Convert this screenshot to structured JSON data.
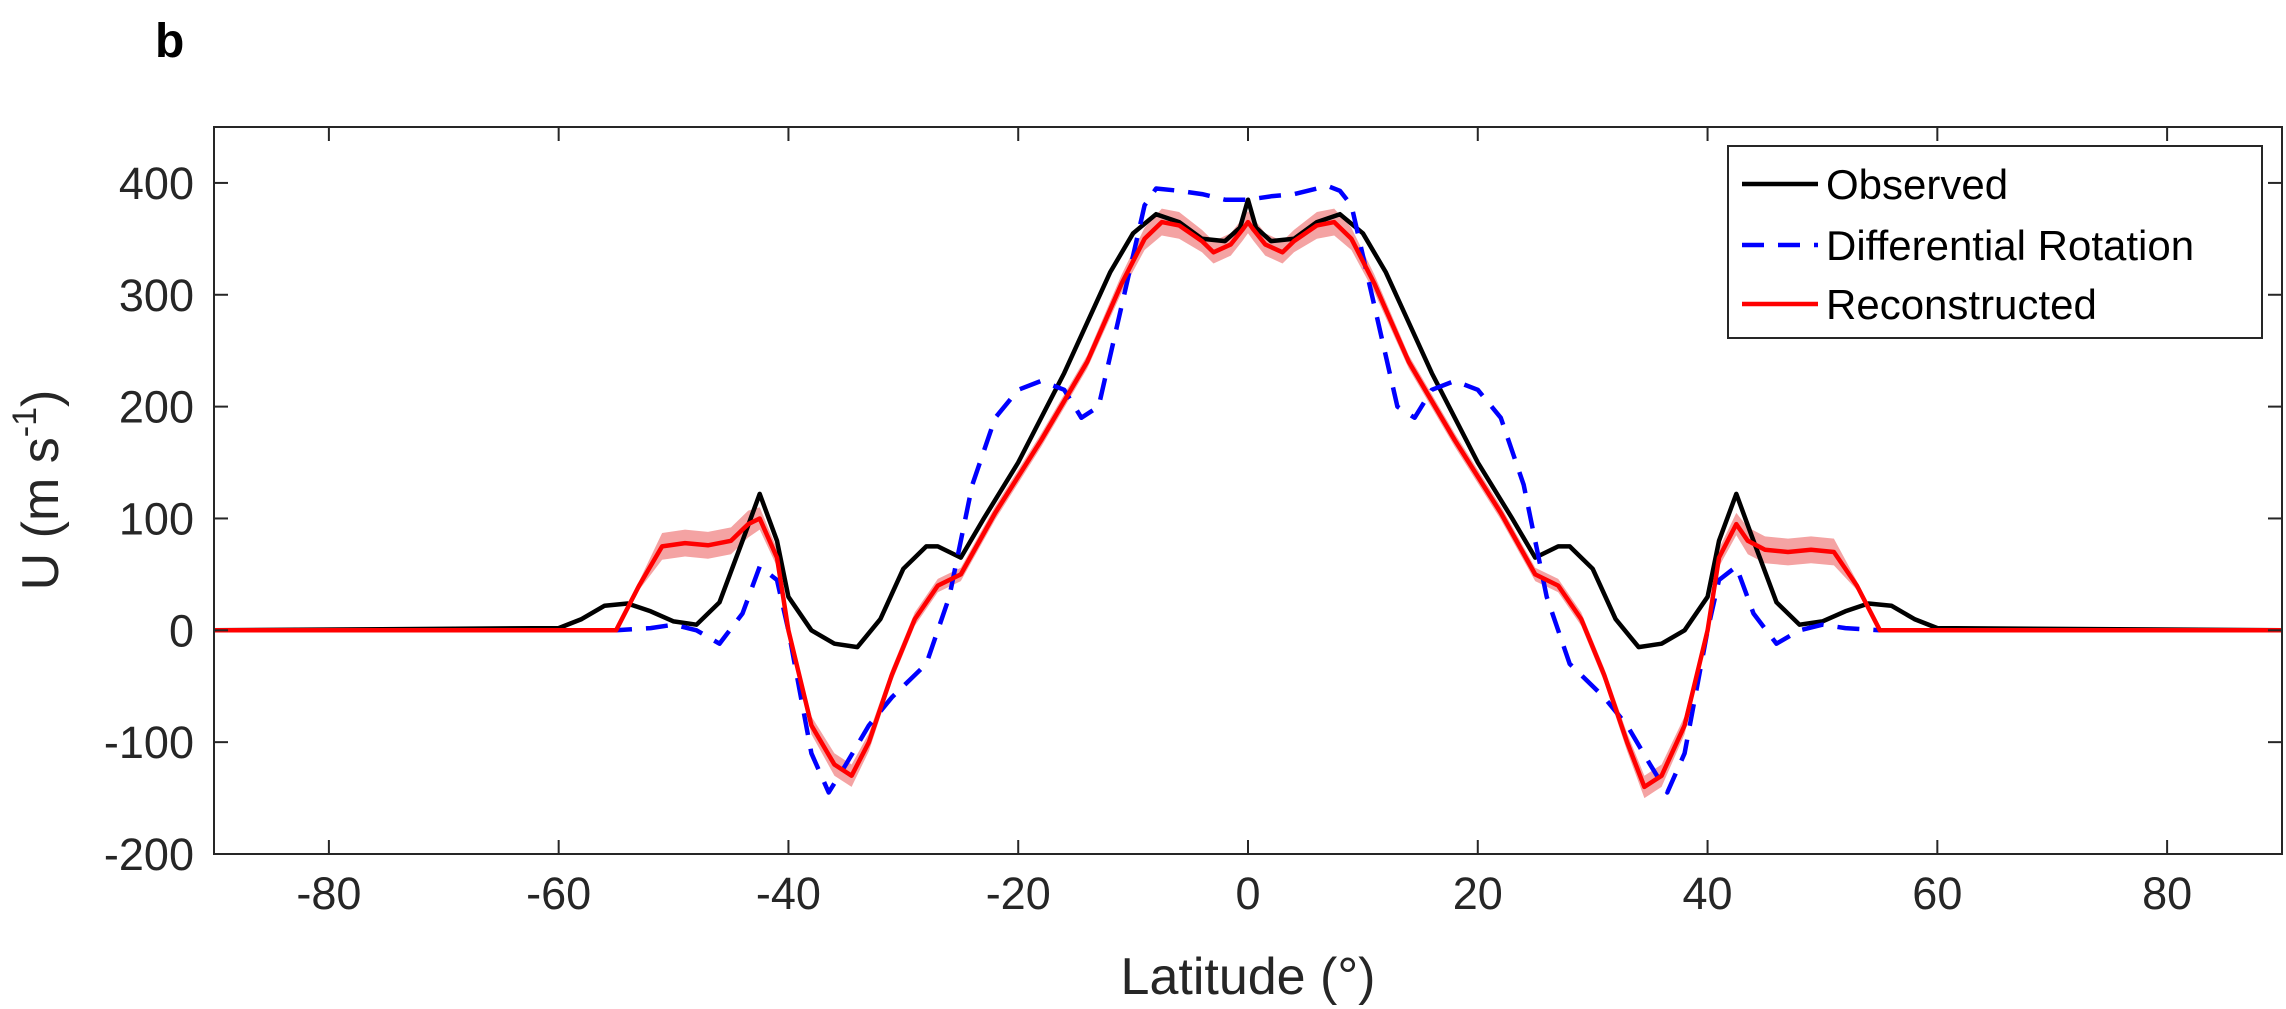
{
  "panel_label": "b",
  "colors": {
    "observed": "#000000",
    "differential_rotation": "#0000ff",
    "reconstructed": "#ff0000",
    "reconstructed_band": "#f4a3a3",
    "axis": "#262626"
  },
  "chart_data": {
    "type": "line",
    "xlabel": "Latitude (°)",
    "ylabel_main": "U (m s",
    "ylabel_sup": "-1",
    "ylabel_close": ")",
    "xlim": [
      -90,
      90
    ],
    "ylim": [
      -200,
      450
    ],
    "xticks": [
      -80,
      -60,
      -40,
      -20,
      0,
      20,
      40,
      60,
      80
    ],
    "xtick_labels": [
      "-80",
      "-60",
      "-40",
      "-20",
      "0",
      "20",
      "40",
      "60",
      "80"
    ],
    "yticks": [
      -200,
      -100,
      0,
      100,
      200,
      300,
      400
    ],
    "ytick_labels": [
      "-200",
      "-100",
      "0",
      "100",
      "200",
      "300",
      "400"
    ],
    "grid": false,
    "legend_position": "top-right",
    "legend": [
      "Observed",
      "Differential Rotation",
      "Reconstructed"
    ],
    "series": [
      {
        "name": "Observed",
        "color": "#000000",
        "style": "solid",
        "x": [
          -90,
          -60,
          -58,
          -56,
          -54,
          -52,
          -50,
          -48,
          -46,
          -44,
          -42.5,
          -41,
          -40,
          -38,
          -36,
          -34,
          -32,
          -30,
          -28,
          -27,
          -25,
          -23,
          -20,
          -16,
          -12,
          -10,
          -8,
          -6,
          -4,
          -2,
          -0.7,
          0,
          0.7,
          2,
          4,
          6,
          8,
          10,
          12,
          16,
          20,
          23,
          25,
          27,
          28,
          30,
          32,
          34,
          36,
          38,
          40,
          41,
          42.5,
          44,
          46,
          48,
          50,
          52,
          54,
          56,
          58,
          60,
          90
        ],
        "y": [
          0,
          2,
          10,
          22,
          24,
          17,
          8,
          5,
          25,
          80,
          122,
          80,
          30,
          0,
          -12,
          -15,
          10,
          55,
          75,
          75,
          65,
          100,
          150,
          230,
          320,
          355,
          372,
          365,
          350,
          348,
          360,
          385,
          360,
          348,
          350,
          365,
          372,
          355,
          320,
          230,
          150,
          100,
          65,
          75,
          75,
          55,
          10,
          -15,
          -12,
          0,
          30,
          80,
          122,
          80,
          25,
          5,
          8,
          17,
          24,
          22,
          10,
          2,
          0
        ]
      },
      {
        "name": "Differential Rotation",
        "color": "#0000ff",
        "style": "dashed",
        "x": [
          -90,
          -55,
          -52,
          -50,
          -48,
          -46,
          -44,
          -42.5,
          -41,
          -40,
          -38,
          -36.5,
          -35,
          -33,
          -31,
          -28,
          -26,
          -24,
          -22,
          -20,
          -18,
          -16,
          -14.5,
          -13,
          -11,
          -9,
          -8,
          -6,
          -4,
          -2,
          0,
          2,
          4,
          6,
          7,
          8,
          9,
          11,
          13,
          14.5,
          16,
          18,
          20,
          22,
          24,
          26,
          28,
          31,
          33,
          35,
          36.5,
          38,
          40,
          41,
          42.5,
          44,
          46,
          48,
          50,
          52,
          55,
          90
        ],
        "y": [
          0,
          0,
          2,
          5,
          0,
          -12,
          15,
          57,
          45,
          0,
          -110,
          -145,
          -120,
          -85,
          -60,
          -30,
          30,
          130,
          190,
          215,
          223,
          215,
          190,
          200,
          290,
          380,
          395,
          393,
          390,
          385,
          385,
          388,
          390,
          395,
          397,
          393,
          380,
          290,
          200,
          190,
          215,
          223,
          215,
          190,
          130,
          30,
          -30,
          -60,
          -85,
          -120,
          -145,
          -110,
          0,
          45,
          57,
          15,
          -12,
          0,
          5,
          2,
          0,
          0
        ]
      },
      {
        "name": "Reconstructed",
        "color": "#ff0000",
        "style": "solid",
        "x": [
          -90,
          -55,
          -53,
          -51,
          -49,
          -47,
          -45,
          -43.5,
          -42.5,
          -41,
          -40,
          -38,
          -36,
          -34.5,
          -33,
          -31,
          -29,
          -27,
          -25,
          -22,
          -18,
          -14,
          -11,
          -9,
          -7.5,
          -6,
          -4,
          -3,
          -1.5,
          -0.5,
          0,
          0.5,
          1.5,
          3,
          4,
          6,
          7.5,
          9,
          11,
          14,
          18,
          22,
          25,
          27,
          29,
          31,
          33,
          34.5,
          36,
          38,
          40,
          41,
          42.5,
          43.5,
          45,
          47,
          49,
          51,
          53,
          55,
          90
        ],
        "y": [
          0,
          0,
          40,
          75,
          78,
          76,
          80,
          95,
          100,
          65,
          0,
          -85,
          -120,
          -130,
          -100,
          -40,
          10,
          40,
          50,
          105,
          170,
          240,
          310,
          350,
          365,
          362,
          348,
          338,
          345,
          358,
          365,
          358,
          345,
          338,
          348,
          362,
          365,
          350,
          310,
          240,
          170,
          105,
          50,
          40,
          10,
          -40,
          -100,
          -140,
          -130,
          -85,
          0,
          65,
          95,
          80,
          72,
          70,
          72,
          70,
          40,
          0,
          0
        ]
      }
    ],
    "uncertainty_band": {
      "series": "Reconstructed",
      "half_width": [
        0,
        0,
        4,
        12,
        12,
        12,
        12,
        12,
        10,
        8,
        6,
        8,
        10,
        10,
        8,
        6,
        6,
        6,
        6,
        6,
        6,
        6,
        8,
        10,
        12,
        12,
        10,
        10,
        10,
        10,
        10,
        10,
        10,
        10,
        10,
        12,
        12,
        10,
        8,
        6,
        6,
        6,
        6,
        6,
        6,
        6,
        8,
        10,
        10,
        8,
        6,
        8,
        10,
        12,
        12,
        12,
        12,
        12,
        4,
        0,
        0
      ]
    }
  }
}
